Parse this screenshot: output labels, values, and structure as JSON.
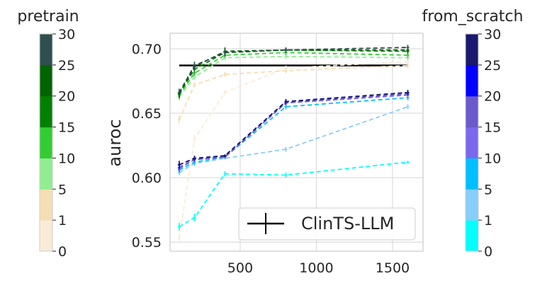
{
  "chart_data": {
    "type": "line",
    "xlabel": "",
    "ylabel": "auroc",
    "xlim": [
      40,
      1700
    ],
    "ylim": [
      0.543,
      0.712
    ],
    "xticks": [
      500,
      1000,
      1500
    ],
    "xtick_labels": [
      "500",
      "1000",
      "1500"
    ],
    "yticks": [
      0.55,
      0.6,
      0.65,
      0.7
    ],
    "ytick_labels": [
      "0.55",
      "0.60",
      "0.65",
      "0.70"
    ],
    "grid": true,
    "legend_position": "bottom-right",
    "reference": {
      "name": "ClinTS-LLM",
      "value": 0.687,
      "x": [
        100,
        1600
      ],
      "color": "#000000"
    },
    "series": [
      {
        "group": "from_scratch",
        "level": "1",
        "color": "#00ffff",
        "x": [
          100,
          200,
          400,
          800,
          1600
        ],
        "y": [
          0.562,
          0.569,
          0.603,
          0.602,
          0.612
        ],
        "err": [
          0.003,
          0.003,
          0.002,
          0.002,
          0.001
        ]
      },
      {
        "group": "from_scratch",
        "level": "5",
        "color": "#87cefa",
        "x": [
          100,
          200,
          400,
          800,
          1600
        ],
        "y": [
          0.604,
          0.611,
          0.615,
          0.622,
          0.655
        ],
        "err": [
          0.002,
          0.002,
          0.001,
          0.002,
          0.002
        ]
      },
      {
        "group": "from_scratch",
        "level": "10",
        "color": "#00bfff",
        "x": [
          100,
          200,
          400,
          800,
          1600
        ],
        "y": [
          0.606,
          0.612,
          0.616,
          0.655,
          0.662
        ],
        "err": [
          0.002,
          0.002,
          0.001,
          0.002,
          0.002
        ]
      },
      {
        "group": "from_scratch",
        "level": "15",
        "color": "#7b68ee",
        "x": [
          100,
          200,
          400,
          800,
          1600
        ],
        "y": [
          0.607,
          0.614,
          0.616,
          0.658,
          0.664
        ],
        "err": [
          0.003,
          0.002,
          0.001,
          0.002,
          0.002
        ]
      },
      {
        "group": "from_scratch",
        "level": "20",
        "color": "#6a5acd",
        "x": [
          100,
          200,
          400,
          800,
          1600
        ],
        "y": [
          0.608,
          0.614,
          0.616,
          0.658,
          0.665
        ],
        "err": [
          0.003,
          0.002,
          0.001,
          0.002,
          0.002
        ]
      },
      {
        "group": "from_scratch",
        "level": "25",
        "color": "#0000ff",
        "x": [
          100,
          200,
          400,
          800,
          1600
        ],
        "y": [
          0.61,
          0.615,
          0.617,
          0.659,
          0.666
        ],
        "err": [
          0.003,
          0.002,
          0.001,
          0.002,
          0.002
        ]
      },
      {
        "group": "from_scratch",
        "level": "30",
        "color": "#191970",
        "x": [
          100,
          200,
          400,
          800,
          1600
        ],
        "y": [
          0.61,
          0.615,
          0.617,
          0.659,
          0.666
        ],
        "err": [
          0.003,
          0.002,
          0.001,
          0.002,
          0.002
        ]
      },
      {
        "group": "pretrain",
        "level": "0",
        "color": "#faebd7",
        "x": [
          100,
          200,
          400,
          800,
          1600
        ],
        "y": [
          0.553,
          0.63,
          0.666,
          0.685,
          0.69
        ],
        "err": [
          0.003,
          0.003,
          0.002,
          0.002,
          0.002
        ]
      },
      {
        "group": "pretrain",
        "level": "1",
        "color": "#f5deb3",
        "x": [
          100,
          200,
          400,
          800,
          1600
        ],
        "y": [
          0.645,
          0.672,
          0.68,
          0.683,
          0.687
        ],
        "err": [
          0.003,
          0.002,
          0.002,
          0.002,
          0.002
        ]
      },
      {
        "group": "pretrain",
        "level": "5",
        "color": "#90ee90",
        "x": [
          100,
          200,
          400,
          800,
          1600
        ],
        "y": [
          0.663,
          0.678,
          0.693,
          0.694,
          0.693
        ],
        "err": [
          0.003,
          0.002,
          0.002,
          0.002,
          0.002
        ]
      },
      {
        "group": "pretrain",
        "level": "10",
        "color": "#32cd32",
        "x": [
          100,
          200,
          400,
          800,
          1600
        ],
        "y": [
          0.664,
          0.681,
          0.695,
          0.697,
          0.695
        ],
        "err": [
          0.003,
          0.002,
          0.002,
          0.002,
          0.002
        ]
      },
      {
        "group": "pretrain",
        "level": "15",
        "color": "#008000",
        "x": [
          100,
          200,
          400,
          800,
          1600
        ],
        "y": [
          0.665,
          0.684,
          0.697,
          0.699,
          0.698
        ],
        "err": [
          0.003,
          0.003,
          0.003,
          0.002,
          0.002
        ]
      },
      {
        "group": "pretrain",
        "level": "20",
        "color": "#006400",
        "x": [
          100,
          200,
          400,
          800,
          1600
        ],
        "y": [
          0.665,
          0.686,
          0.698,
          0.699,
          0.699
        ],
        "err": [
          0.003,
          0.003,
          0.003,
          0.002,
          0.002
        ]
      },
      {
        "group": "pretrain",
        "level": "25",
        "color": "#2f4f4f",
        "x": [
          100,
          200,
          400,
          800,
          1600
        ],
        "y": [
          0.666,
          0.687,
          0.697,
          0.699,
          0.701
        ],
        "err": [
          0.003,
          0.003,
          0.003,
          0.002,
          0.002
        ]
      }
    ],
    "colorbars": [
      {
        "title": "pretrain",
        "tick_labels": [
          "0",
          "1",
          "5",
          "10",
          "15",
          "20",
          "25",
          "30"
        ],
        "colors": [
          "#faebd7",
          "#f5deb3",
          "#90ee90",
          "#32cd32",
          "#008000",
          "#006400",
          "#2f4f4f"
        ]
      },
      {
        "title": "from_scratch",
        "tick_labels": [
          "0",
          "1",
          "5",
          "10",
          "15",
          "20",
          "25",
          "30"
        ],
        "colors": [
          "#00ffff",
          "#87cefa",
          "#00bfff",
          "#7b68ee",
          "#6a5acd",
          "#0000ff",
          "#191970"
        ]
      }
    ]
  }
}
